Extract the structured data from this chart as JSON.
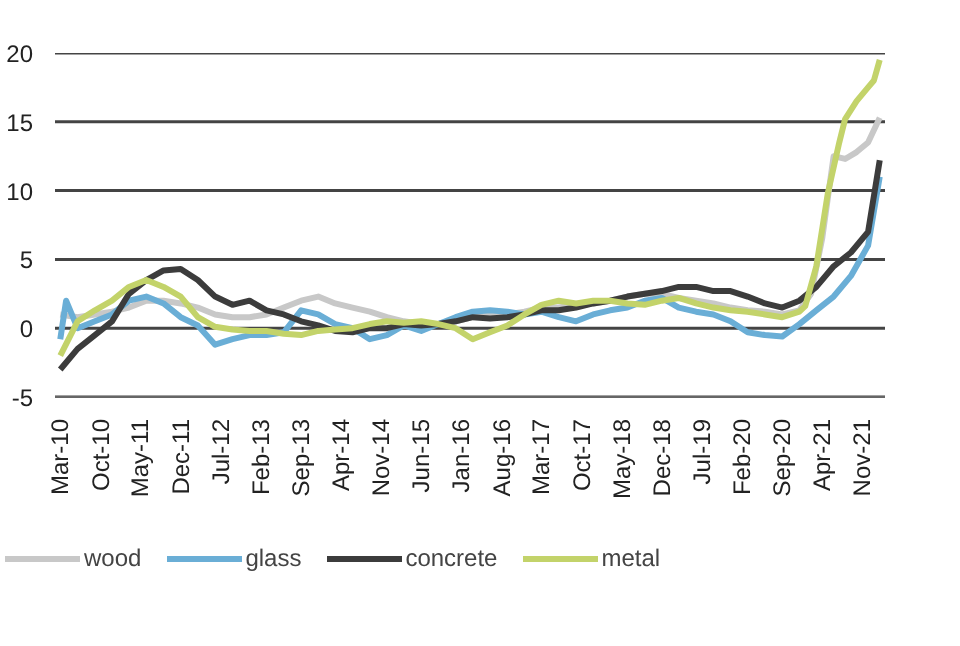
{
  "chart_data": {
    "type": "line",
    "xlim": [
      "2010-02",
      "2022-03"
    ],
    "ylim": [
      -5,
      20
    ],
    "yticks": [
      -5,
      0,
      5,
      10,
      15,
      20
    ],
    "xticks": [
      {
        "value": "2010-03",
        "label": "Mar-10"
      },
      {
        "value": "2010-10",
        "label": "Oct-10"
      },
      {
        "value": "2011-05",
        "label": "May-11"
      },
      {
        "value": "2011-12",
        "label": "Dec-11"
      },
      {
        "value": "2012-07",
        "label": "Jul-12"
      },
      {
        "value": "2013-02",
        "label": "Feb-13"
      },
      {
        "value": "2013-09",
        "label": "Sep-13"
      },
      {
        "value": "2014-04",
        "label": "Apr-14"
      },
      {
        "value": "2014-11",
        "label": "Nov-14"
      },
      {
        "value": "2015-06",
        "label": "Jun-15"
      },
      {
        "value": "2016-01",
        "label": "Jan-16"
      },
      {
        "value": "2016-08",
        "label": "Aug-16"
      },
      {
        "value": "2017-03",
        "label": "Mar-17"
      },
      {
        "value": "2017-10",
        "label": "Oct-17"
      },
      {
        "value": "2018-05",
        "label": "May-18"
      },
      {
        "value": "2018-12",
        "label": "Dec-18"
      },
      {
        "value": "2019-07",
        "label": "Jul-19"
      },
      {
        "value": "2020-02",
        "label": "Feb-20"
      },
      {
        "value": "2020-09",
        "label": "Sep-20"
      },
      {
        "value": "2021-04",
        "label": "Apr-21"
      },
      {
        "value": "2021-11",
        "label": "Nov-21"
      }
    ],
    "grid": "y",
    "legend": "bottom",
    "marker": "none",
    "line_style": "solid",
    "series": [
      {
        "name": "wood",
        "color": "#c8c8c8",
        "x": [
          "2010-03",
          "2010-06",
          "2010-09",
          "2010-12",
          "2011-03",
          "2011-06",
          "2011-09",
          "2011-12",
          "2012-03",
          "2012-06",
          "2012-09",
          "2012-12",
          "2013-03",
          "2013-06",
          "2013-09",
          "2013-12",
          "2014-03",
          "2014-06",
          "2014-09",
          "2014-12",
          "2015-03",
          "2015-06",
          "2015-09",
          "2015-12",
          "2016-03",
          "2016-06",
          "2016-09",
          "2016-12",
          "2017-03",
          "2017-06",
          "2017-09",
          "2017-12",
          "2018-03",
          "2018-06",
          "2018-09",
          "2018-12",
          "2019-03",
          "2019-06",
          "2019-09",
          "2019-12",
          "2020-03",
          "2020-06",
          "2020-09",
          "2020-12",
          "2021-02",
          "2021-04",
          "2021-06",
          "2021-08",
          "2021-10",
          "2021-12",
          "2022-02"
        ],
        "values": [
          1.0,
          0.8,
          1.0,
          1.2,
          1.5,
          2.0,
          2.0,
          1.8,
          1.5,
          1.0,
          0.8,
          0.8,
          1.0,
          1.5,
          2.0,
          2.3,
          1.8,
          1.5,
          1.2,
          0.8,
          0.5,
          0.3,
          0.3,
          0.5,
          0.8,
          1.0,
          1.0,
          1.2,
          1.5,
          1.5,
          1.7,
          1.8,
          2.0,
          2.3,
          2.5,
          2.5,
          2.2,
          2.0,
          1.8,
          1.5,
          1.3,
          1.2,
          1.0,
          1.3,
          2.5,
          6.5,
          12.5,
          12.3,
          12.8,
          13.5,
          15.3
        ]
      },
      {
        "name": "glass",
        "color": "#6aaed6",
        "x": [
          "2010-03",
          "2010-04",
          "2010-06",
          "2010-09",
          "2010-12",
          "2011-03",
          "2011-06",
          "2011-09",
          "2011-12",
          "2012-03",
          "2012-06",
          "2012-09",
          "2012-12",
          "2013-03",
          "2013-06",
          "2013-09",
          "2013-12",
          "2014-03",
          "2014-06",
          "2014-09",
          "2014-12",
          "2015-03",
          "2015-06",
          "2015-09",
          "2015-12",
          "2016-03",
          "2016-06",
          "2016-09",
          "2016-12",
          "2017-03",
          "2017-06",
          "2017-09",
          "2017-12",
          "2018-03",
          "2018-06",
          "2018-09",
          "2018-12",
          "2019-03",
          "2019-06",
          "2019-09",
          "2019-12",
          "2020-03",
          "2020-06",
          "2020-09",
          "2020-12",
          "2021-03",
          "2021-06",
          "2021-09",
          "2021-12",
          "2022-02"
        ],
        "values": [
          -0.8,
          2.0,
          0,
          0.5,
          1.0,
          2.0,
          2.3,
          1.8,
          0.8,
          0.2,
          -1.2,
          -0.8,
          -0.5,
          -0.5,
          -0.3,
          1.3,
          1.0,
          0.3,
          0,
          -0.8,
          -0.5,
          0.2,
          -0.2,
          0.3,
          0.8,
          1.2,
          1.3,
          1.2,
          1.0,
          1.2,
          0.8,
          0.5,
          1.0,
          1.3,
          1.5,
          2.0,
          2.2,
          1.5,
          1.2,
          1.0,
          0.5,
          -0.3,
          -0.5,
          -0.6,
          0.3,
          1.3,
          2.3,
          3.8,
          6.0,
          11.0
        ]
      },
      {
        "name": "concrete",
        "color": "#3c3c3c",
        "x": [
          "2010-03",
          "2010-06",
          "2010-09",
          "2010-12",
          "2011-03",
          "2011-06",
          "2011-09",
          "2011-12",
          "2012-03",
          "2012-06",
          "2012-09",
          "2012-12",
          "2013-03",
          "2013-06",
          "2013-09",
          "2013-12",
          "2014-03",
          "2014-06",
          "2014-09",
          "2014-12",
          "2015-03",
          "2015-06",
          "2015-09",
          "2015-12",
          "2016-03",
          "2016-06",
          "2016-09",
          "2016-12",
          "2017-03",
          "2017-06",
          "2017-09",
          "2017-12",
          "2018-03",
          "2018-06",
          "2018-09",
          "2018-12",
          "2019-03",
          "2019-06",
          "2019-09",
          "2019-12",
          "2020-03",
          "2020-06",
          "2020-09",
          "2020-12",
          "2021-03",
          "2021-06",
          "2021-09",
          "2021-12",
          "2022-02"
        ],
        "values": [
          -3,
          -1.5,
          -0.5,
          0.5,
          2.5,
          3.5,
          4.2,
          4.3,
          3.5,
          2.3,
          1.7,
          2.0,
          1.3,
          1.0,
          0.5,
          0.2,
          -0.2,
          -0.3,
          0,
          0,
          0.3,
          0.2,
          0.3,
          0.5,
          0.8,
          0.7,
          0.8,
          1.0,
          1.3,
          1.3,
          1.5,
          1.8,
          2.0,
          2.3,
          2.5,
          2.7,
          3.0,
          3.0,
          2.7,
          2.7,
          2.3,
          1.8,
          1.5,
          2.0,
          3.0,
          4.5,
          5.5,
          7.0,
          12.2
        ]
      },
      {
        "name": "metal",
        "color": "#c3d36a",
        "x": [
          "2010-03",
          "2010-06",
          "2010-09",
          "2010-12",
          "2011-03",
          "2011-06",
          "2011-09",
          "2011-12",
          "2012-03",
          "2012-06",
          "2012-09",
          "2012-12",
          "2013-03",
          "2013-06",
          "2013-09",
          "2013-12",
          "2014-03",
          "2014-06",
          "2014-09",
          "2014-12",
          "2015-03",
          "2015-06",
          "2015-09",
          "2015-12",
          "2016-03",
          "2016-06",
          "2016-09",
          "2016-12",
          "2017-03",
          "2017-06",
          "2017-09",
          "2017-12",
          "2018-03",
          "2018-06",
          "2018-09",
          "2018-12",
          "2019-03",
          "2019-06",
          "2019-09",
          "2019-12",
          "2020-03",
          "2020-06",
          "2020-09",
          "2020-12",
          "2021-01",
          "2021-03",
          "2021-05",
          "2021-07",
          "2021-08",
          "2021-10",
          "2021-12",
          "2022-01",
          "2022-02"
        ],
        "values": [
          -2,
          0.5,
          1.3,
          2.0,
          3.0,
          3.5,
          3.0,
          2.3,
          0.8,
          0.1,
          -0.1,
          -0.2,
          -0.2,
          -0.4,
          -0.5,
          -0.2,
          -0.1,
          0,
          0.3,
          0.5,
          0.4,
          0.5,
          0.3,
          0,
          -0.8,
          -0.3,
          0.2,
          1.0,
          1.7,
          2.0,
          1.8,
          2.0,
          2.0,
          1.8,
          1.7,
          2.0,
          2.2,
          1.8,
          1.5,
          1.3,
          1.2,
          1.0,
          0.8,
          1.2,
          1.6,
          4.5,
          9.8,
          13.5,
          15.2,
          16.5,
          17.5,
          18.0,
          19.5
        ]
      }
    ]
  }
}
